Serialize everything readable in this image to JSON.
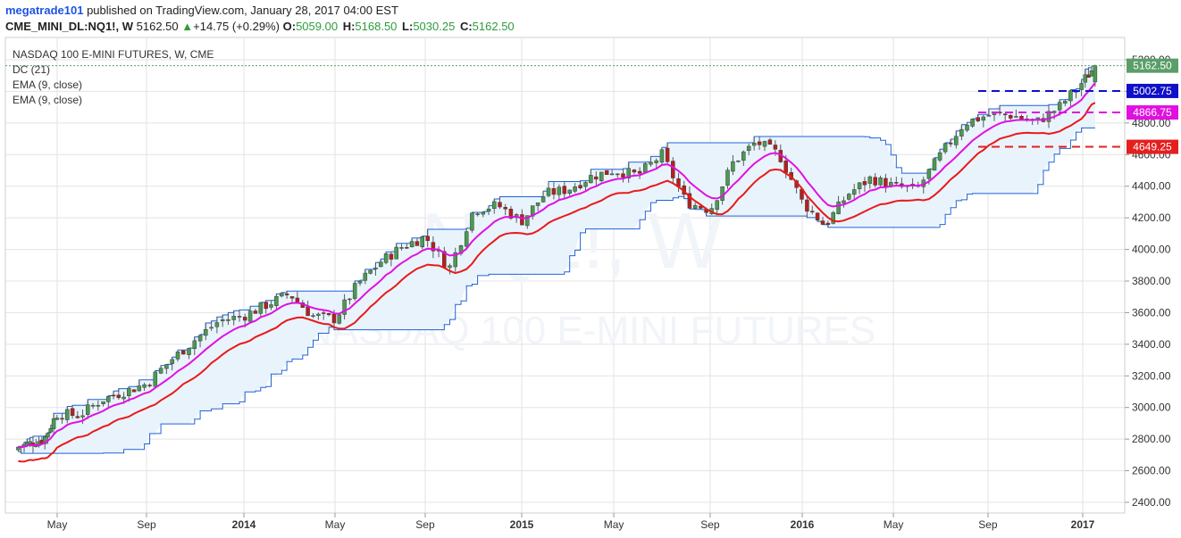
{
  "header": {
    "author": "megatrade101",
    "published": "published on TradingView.com, January 28, 2017 04:00 EST",
    "symbol": "CME_MINI_DL:NQ1!, W",
    "last": "5162.50",
    "change": "+14.75 (+0.29%)",
    "ohlc": {
      "o_label": "O:",
      "o": "5059.00",
      "h_label": "H:",
      "h": "5168.50",
      "l_label": "L:",
      "l": "5030.25",
      "c_label": "C:",
      "c": "5162.50"
    }
  },
  "legend": {
    "title": "NASDAQ 100 E-MINI FUTURES, W, CME",
    "items": [
      "DC (21)",
      "EMA (9, close)",
      "EMA (9, close)"
    ]
  },
  "watermark": {
    "symbol": "NQ1!, W",
    "name": "NASDAQ 100 E-MINI FUTURES"
  },
  "colors": {
    "up": "#4a9b50",
    "down": "#b81e1e",
    "ema_fast": "#e011e0",
    "ema_slow": "#e81a1a",
    "donchian": "#1e63d8",
    "donchian_fill": "#e9f3fc",
    "grid": "#e3e3e3",
    "last_price": "#5a9e6a",
    "blue_level": "#1010c8",
    "magenta_level": "#e011e0",
    "red_level": "#e41f1f"
  },
  "chart_data": {
    "type": "candlestick",
    "timeframe": "W",
    "ylim": [
      2300,
      5300
    ],
    "y_ticks": [
      2400,
      2600,
      2800,
      3000,
      3200,
      3400,
      3600,
      3800,
      4000,
      4200,
      4400,
      4600,
      4800,
      5000,
      5200
    ],
    "x_ticks": [
      {
        "label": "May",
        "date": "2013-05"
      },
      {
        "label": "Sep",
        "date": "2013-09"
      },
      {
        "label": "2014",
        "date": "2014-01"
      },
      {
        "label": "May",
        "date": "2014-05"
      },
      {
        "label": "Sep",
        "date": "2014-09"
      },
      {
        "label": "2015",
        "date": "2015-01"
      },
      {
        "label": "May",
        "date": "2015-05"
      },
      {
        "label": "Sep",
        "date": "2015-09"
      },
      {
        "label": "2016",
        "date": "2016-01"
      },
      {
        "label": "May",
        "date": "2016-05"
      },
      {
        "label": "Sep",
        "date": "2016-09"
      },
      {
        "label": "2017",
        "date": "2017-01"
      }
    ],
    "close_anchors": [
      [
        "2013-02",
        2750
      ],
      [
        "2013-04",
        2800
      ],
      [
        "2013-05",
        2960
      ],
      [
        "2013-06",
        2950
      ],
      [
        "2013-07",
        3050
      ],
      [
        "2013-08",
        3100
      ],
      [
        "2013-09",
        3150
      ],
      [
        "2013-10",
        3300
      ],
      [
        "2013-11",
        3430
      ],
      [
        "2013-12",
        3550
      ],
      [
        "2014-01",
        3580
      ],
      [
        "2014-02",
        3650
      ],
      [
        "2014-03",
        3720
      ],
      [
        "2014-04",
        3580
      ],
      [
        "2014-05",
        3560
      ],
      [
        "2014-06",
        3780
      ],
      [
        "2014-07",
        3920
      ],
      [
        "2014-08",
        4020
      ],
      [
        "2014-09",
        4080
      ],
      [
        "2014-10",
        3880
      ],
      [
        "2014-11",
        4250
      ],
      [
        "2014-12",
        4280
      ],
      [
        "2015-01",
        4180
      ],
      [
        "2015-02",
        4350
      ],
      [
        "2015-03",
        4380
      ],
      [
        "2015-04",
        4460
      ],
      [
        "2015-05",
        4500
      ],
      [
        "2015-06",
        4470
      ],
      [
        "2015-07",
        4600
      ],
      [
        "2015-08",
        4300
      ],
      [
        "2015-09",
        4250
      ],
      [
        "2015-10",
        4550
      ],
      [
        "2015-11",
        4680
      ],
      [
        "2015-12",
        4600
      ],
      [
        "2016-01",
        4300
      ],
      [
        "2016-02",
        4150
      ],
      [
        "2016-03",
        4350
      ],
      [
        "2016-04",
        4450
      ],
      [
        "2016-05",
        4400
      ],
      [
        "2016-06",
        4380
      ],
      [
        "2016-07",
        4600
      ],
      [
        "2016-08",
        4800
      ],
      [
        "2016-09",
        4850
      ],
      [
        "2016-10",
        4850
      ],
      [
        "2016-11",
        4800
      ],
      [
        "2016-12",
        4900
      ],
      [
        "2017-01",
        5060
      ],
      [
        "2017-01-28",
        5162.5
      ]
    ],
    "last_candle": {
      "date": "2017-01-28",
      "open": 5059.0,
      "high": 5168.5,
      "low": 5030.25,
      "close": 5162.5
    },
    "donchian": {
      "period": 21,
      "upper_final": 5162.5,
      "lower_final": 4575
    },
    "ema_fast": {
      "name": "EMA (9, close)",
      "last": 4980
    },
    "ema_slow": {
      "name": "EMA (9, close)",
      "last": 4870
    },
    "price_labels": [
      {
        "value": "5162.50",
        "color": "last_price",
        "dotted": true
      },
      {
        "value": "5002.75",
        "color": "blue_level"
      },
      {
        "value": "4866.75",
        "color": "magenta_level"
      },
      {
        "value": "4649.25",
        "color": "red_level"
      }
    ],
    "levels": [
      {
        "value": 5002.75,
        "color": "blue_level",
        "from": "2016-11"
      },
      {
        "value": 4866.75,
        "color": "magenta_level",
        "from": "2016-11"
      },
      {
        "value": 4649.25,
        "color": "red_level",
        "from": "2016-11"
      }
    ]
  }
}
